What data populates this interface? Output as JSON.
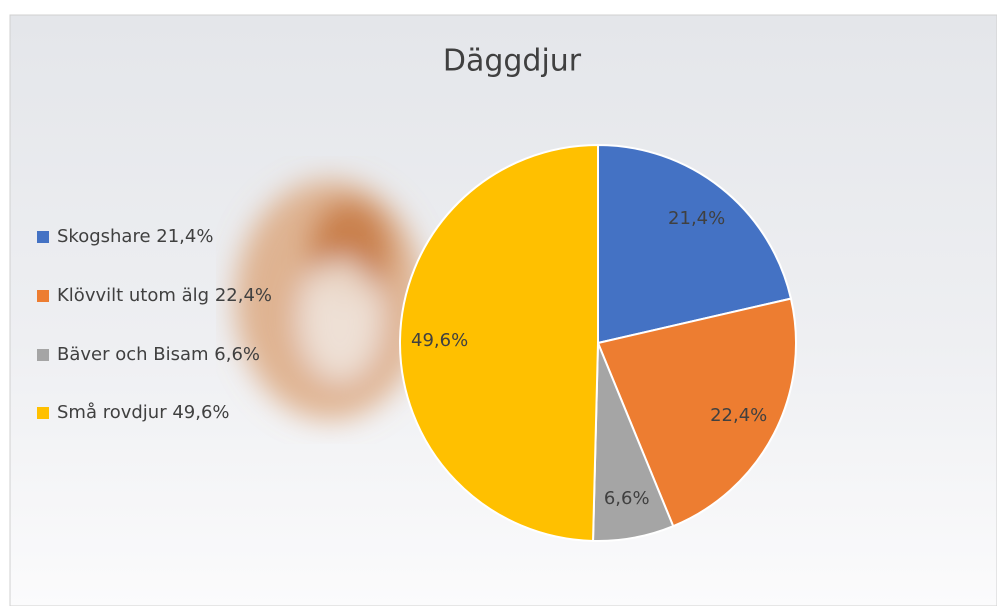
{
  "chart_data": {
    "type": "pie",
    "title": "Däggdjur",
    "categories": [
      "Skogshare 21,4%",
      "Klövvilt utom älg 22,4%",
      "Bäver och Bisam 6,6%",
      "Små rovdjur 49,6%"
    ],
    "values": [
      21.4,
      22.4,
      6.6,
      49.6
    ],
    "value_labels": [
      "21,4%",
      "22,4%",
      "6,6%",
      "49,6%"
    ],
    "colors": [
      "#4472c4",
      "#ed7d31",
      "#a5a5a5",
      "#ffc000"
    ],
    "legend": "left"
  }
}
